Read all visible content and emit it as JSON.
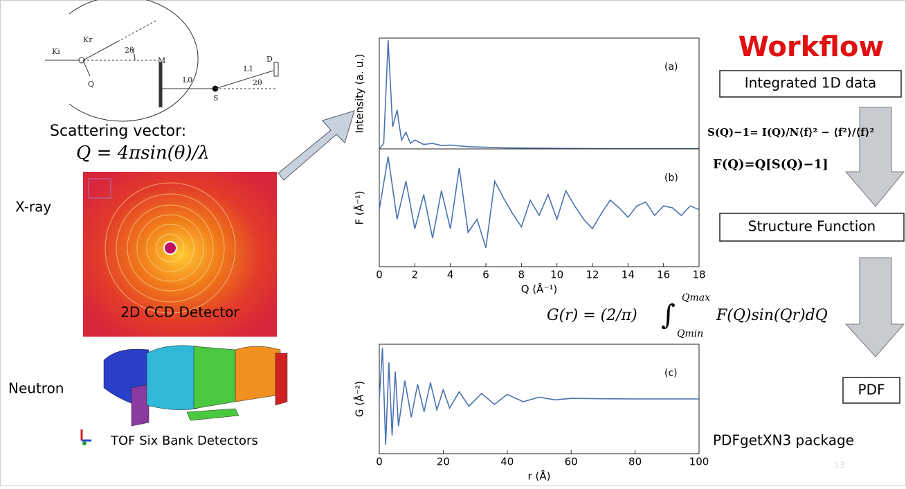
{
  "left": {
    "diagram_labels": [
      "Ki",
      "Kr",
      "Q",
      "2θ",
      "M",
      "L0",
      "S",
      "L1",
      "D",
      "2θ"
    ],
    "scattering_label": "Scattering vector:",
    "formula": "Q = 4πsin(θ)/λ",
    "xray_label": "X-ray",
    "detector_label": "2D CCD Detector",
    "neutron_label": "Neutron",
    "tof_label": "TOF Six Bank Detectors"
  },
  "chart_data": [
    {
      "type": "line",
      "title": "(a)",
      "ylabel": "Intensity (a. u.)",
      "color": "#4a72b0",
      "x": [
        0,
        0.25,
        0.5,
        0.75,
        1,
        1.25,
        1.5,
        1.75,
        2,
        2.5,
        3,
        3.5,
        4,
        5,
        6,
        7,
        8,
        10,
        12,
        14,
        16,
        18
      ],
      "values": [
        0,
        0.5,
        9.8,
        2,
        3.5,
        0.8,
        1.5,
        0.5,
        0.8,
        0.4,
        0.5,
        0.3,
        0.35,
        0.2,
        0.15,
        0.1,
        0.08,
        0.05,
        0.03,
        0.02,
        0.02,
        0.02
      ],
      "xlim": [
        0,
        18
      ],
      "ylim": [
        0,
        10
      ]
    },
    {
      "type": "line",
      "title": "(b)",
      "ylabel": "F (Å⁻¹)",
      "xlabel": "Q (Å⁻¹)",
      "color": "#4a72b0",
      "x": [
        0,
        0.5,
        1,
        1.5,
        2,
        2.5,
        3,
        3.5,
        4,
        4.5,
        5,
        5.5,
        6,
        6.5,
        7,
        7.5,
        8,
        8.5,
        9,
        9.5,
        10,
        10.5,
        11,
        11.5,
        12,
        12.5,
        13,
        13.5,
        14,
        14.5,
        15,
        15.5,
        16,
        16.5,
        17,
        17.5,
        18
      ],
      "values": [
        0,
        2.8,
        -0.5,
        1.5,
        -1,
        0.8,
        -1.5,
        1,
        -1,
        2.2,
        -1.2,
        -0.5,
        -2,
        1.5,
        0.6,
        -0.2,
        -0.9,
        0.5,
        -0.3,
        0.8,
        -0.5,
        1,
        0.2,
        -0.5,
        -1,
        -0.2,
        0.5,
        0.1,
        -0.4,
        0.2,
        0.4,
        -0.3,
        0.2,
        0.1,
        -0.3,
        0.2,
        0
      ],
      "xlim": [
        0,
        18
      ],
      "ylim": [
        -3,
        3.2
      ],
      "xticks": [
        0,
        2,
        4,
        6,
        8,
        10,
        12,
        14,
        16,
        18
      ]
    },
    {
      "type": "line",
      "title": "(c)",
      "ylabel": "G (Å⁻²)",
      "xlabel": "r (Å)",
      "color": "#4a72b0",
      "x": [
        0,
        1,
        2,
        3,
        4,
        5,
        6,
        8,
        10,
        12,
        14,
        16,
        18,
        20,
        22,
        25,
        28,
        32,
        36,
        40,
        45,
        50,
        55,
        60,
        70,
        80,
        90,
        100
      ],
      "values": [
        0,
        2.8,
        -2.5,
        2,
        -2,
        1.5,
        -1.5,
        1,
        -1,
        0.8,
        -0.7,
        0.9,
        -0.6,
        0.5,
        -0.5,
        0.4,
        -0.4,
        0.3,
        -0.3,
        0.25,
        -0.15,
        0.1,
        -0.05,
        0.03,
        0.01,
        0,
        0,
        0
      ],
      "xlim": [
        0,
        100
      ],
      "ylim": [
        -3,
        3
      ],
      "xticks": [
        0,
        20,
        40,
        60,
        80,
        100
      ]
    }
  ],
  "gr_formula": {
    "lhs": "G(r) = (2/π)",
    "integral": "∫",
    "upper": "Qmax",
    "lower": "Qmin",
    "rhs": "F(Q)sin(Qr)dQ"
  },
  "workflow": {
    "title": "Workflow",
    "step1": "Integrated 1D data",
    "sq_formula": "S(Q)−1= I(Q)/N⟨f⟩² − ⟨f²⟩/⟨f⟩²",
    "fq_formula": "F(Q)=Q[S(Q)−1]",
    "step2": "Structure Function",
    "step3": "PDF",
    "package": "PDFgetXN3 package"
  },
  "page_number": "13"
}
